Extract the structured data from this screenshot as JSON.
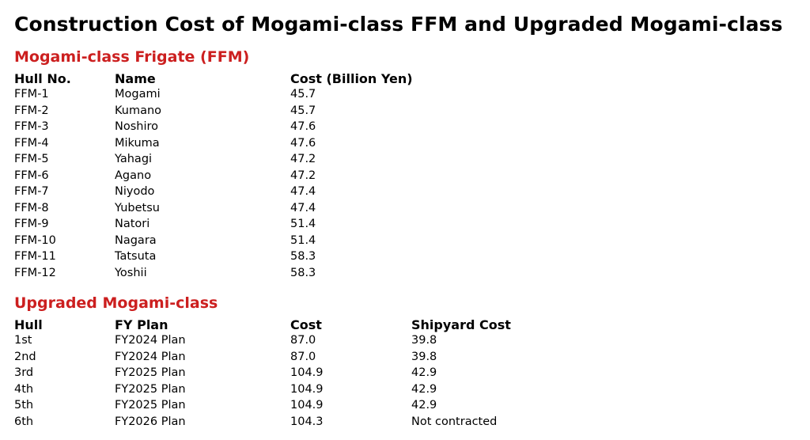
{
  "title": "Construction Cost of Mogami-class FFM and Upgraded Mogami-class",
  "sections": [
    {
      "heading": "Mogami-class Frigate (FFM)",
      "columns": [
        "Hull No.",
        "Name",
        "Cost (Billion Yen)"
      ],
      "rows": [
        [
          "FFM-1",
          "Mogami",
          "45.7"
        ],
        [
          "FFM-2",
          "Kumano",
          "45.7"
        ],
        [
          "FFM-3",
          "Noshiro",
          "47.6"
        ],
        [
          "FFM-4",
          "Mikuma",
          "47.6"
        ],
        [
          "FFM-5",
          "Yahagi",
          "47.2"
        ],
        [
          "FFM-6",
          "Agano",
          "47.2"
        ],
        [
          "FFM-7",
          "Niyodo",
          "47.4"
        ],
        [
          "FFM-8",
          "Yubetsu",
          "47.4"
        ],
        [
          "FFM-9",
          "Natori",
          "51.4"
        ],
        [
          "FFM-10",
          "Nagara",
          "51.4"
        ],
        [
          "FFM-11",
          "Tatsuta",
          "58.3"
        ],
        [
          "FFM-12",
          "Yoshii",
          "58.3"
        ]
      ]
    },
    {
      "heading": "Upgraded Mogami-class",
      "columns": [
        "Hull",
        "FY Plan",
        "Cost",
        "Shipyard Cost"
      ],
      "rows": [
        [
          "1st",
          "FY2024 Plan",
          "87.0",
          "39.8"
        ],
        [
          "2nd",
          "FY2024 Plan",
          "87.0",
          "39.8"
        ],
        [
          "3rd",
          "FY2025 Plan",
          "104.9",
          "42.9"
        ],
        [
          "4th",
          "FY2025 Plan",
          "104.9",
          "42.9"
        ],
        [
          "5th",
          "FY2025 Plan",
          "104.9",
          "42.9"
        ],
        [
          "6th",
          "FY2026 Plan",
          "104.3",
          "Not contracted"
        ]
      ]
    }
  ],
  "colors": {
    "heading": "#cc1f1f",
    "text": "#000000",
    "background": "#ffffff"
  }
}
